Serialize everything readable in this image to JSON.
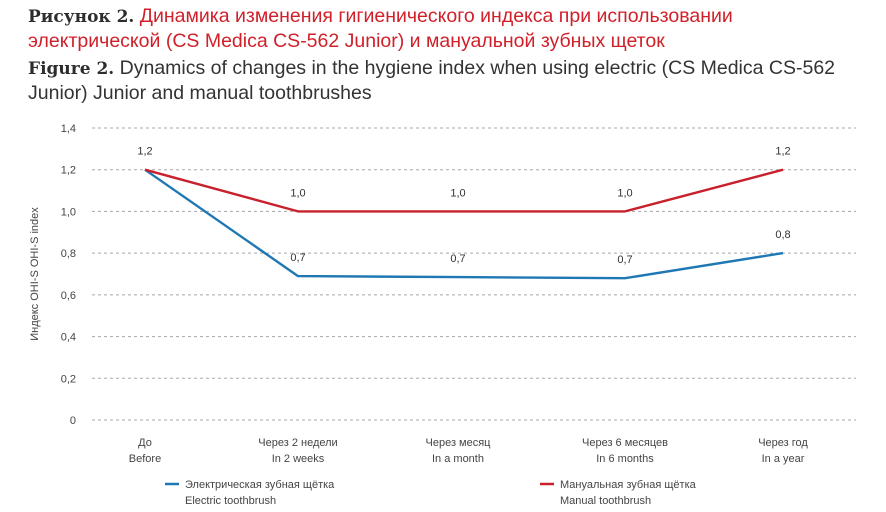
{
  "figure": {
    "label_ru": "Рисунок 2.",
    "title_ru": "Динамика изменения гигиенического индекса при использовании электрической (CS Medica CS-562 Junior) и мануальной зубных щеток",
    "label_en": "Figure 2.",
    "title_en": "Dynamics of changes in the hygiene index when using electric (CS Medica CS-562 Junior) Junior and manual toothbrushes"
  },
  "chart_data": {
    "type": "line",
    "title": "Dynamics of changes in the hygiene index",
    "ylabel": "Индекс OHI-S   OHI-S index",
    "ylim": [
      0,
      1.4
    ],
    "yticks": [
      "0",
      "0,2",
      "0,4",
      "0,6",
      "0,8",
      "1,0",
      "1,2",
      "1,4"
    ],
    "grid": true,
    "legend_position": "bottom",
    "categories": [
      {
        "ru": "До",
        "en": "Before"
      },
      {
        "ru": "Через 2 недели",
        "en": "In 2 weeks"
      },
      {
        "ru": "Через месяц",
        "en": "In a month"
      },
      {
        "ru": "Через 6 месяцев",
        "en": "In 6 months"
      },
      {
        "ru": "Через год",
        "en": "In a year"
      }
    ],
    "series": [
      {
        "name_ru": "Электрическая зубная щётка",
        "name_en": "Electric toothbrush",
        "color": "#1f78b4",
        "values": [
          1.2,
          0.69,
          0.685,
          0.68,
          0.8
        ],
        "labels": [
          "",
          "0,7",
          "0,7",
          "0,7",
          "0,8"
        ]
      },
      {
        "name_ru": "Мануальная зубная щётка",
        "name_en": "Manual toothbrush",
        "color": "#c8202c",
        "values": [
          1.2,
          1.0,
          1.0,
          1.0,
          1.2
        ],
        "labels": [
          "1,2",
          "1,0",
          "1,0",
          "1,0",
          "1,2"
        ]
      }
    ]
  }
}
